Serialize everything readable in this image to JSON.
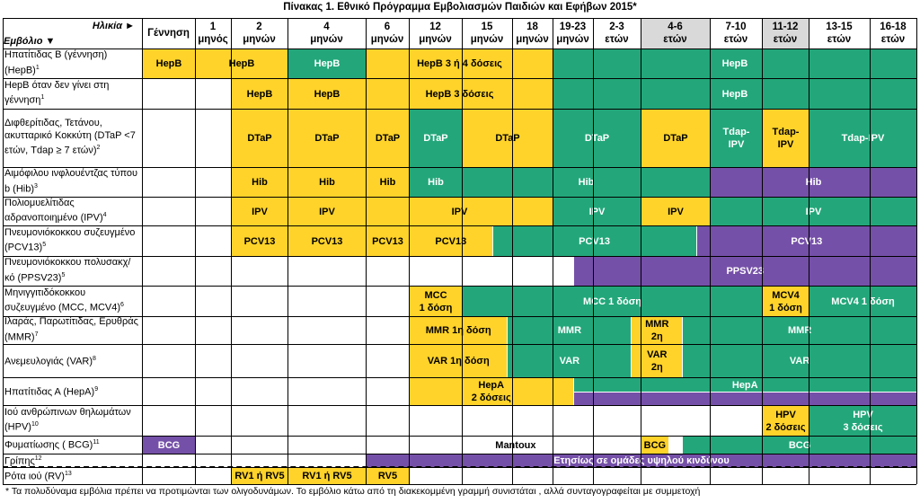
{
  "title": "Πίνακας 1.  Εθνικό Πρόγραμμα Εμβολιασμών Παιδιών και Εφήβων 2015*",
  "corner": {
    "age_label": "Ηλικία ►",
    "vaccine_label": "Εμβόλιο ▼"
  },
  "columns": [
    {
      "l1": "Γέννηση",
      "l2": ""
    },
    {
      "l1": "1",
      "l2": "μηνός"
    },
    {
      "l1": "2",
      "l2": "μηνών"
    },
    {
      "l1": "4",
      "l2": "μηνών"
    },
    {
      "l1": "6",
      "l2": "μηνών"
    },
    {
      "l1": "12",
      "l2": "μηνών"
    },
    {
      "l1": "15",
      "l2": "μηνών"
    },
    {
      "l1": "18",
      "l2": "μηνών"
    },
    {
      "l1": "19-23",
      "l2": "μηνών"
    },
    {
      "l1": "2-3",
      "l2": "ετών"
    },
    {
      "l1": "4-6",
      "l2": "ετών"
    },
    {
      "l1": "7-10",
      "l2": "ετών"
    },
    {
      "l1": "11-12",
      "l2": "ετών"
    },
    {
      "l1": "13-15",
      "l2": "ετών"
    },
    {
      "l1": "16-18",
      "l2": "ετών"
    }
  ],
  "rows": [
    {
      "label": "Ηπατίτιδας Β (γέννηση) (ΗepB)",
      "note": "1",
      "bars": [
        {
          "s": 0,
          "e": 0,
          "c": "Y",
          "t": "HepB"
        },
        {
          "s": 1,
          "e": 2,
          "c": "Y",
          "t": "HepB"
        },
        {
          "s": 3,
          "e": 3,
          "c": "G",
          "t": "HepB"
        },
        {
          "s": 4,
          "e": 7,
          "c": "Y",
          "t": "HepB 3 ή 4 δόσεις"
        },
        {
          "s": 8,
          "e": 14,
          "c": "G",
          "t": "HepB"
        }
      ]
    },
    {
      "label": "HepB  όταν δεν γίνει στη γέννηση",
      "note": "1",
      "bars": [
        {
          "s": 2,
          "e": 2,
          "c": "Y",
          "t": "HepB"
        },
        {
          "s": 3,
          "e": 3,
          "c": "Y",
          "t": "HepB"
        },
        {
          "s": 4,
          "e": 7,
          "c": "Y",
          "t": "HepB 3 δόσεις"
        },
        {
          "s": 8,
          "e": 14,
          "c": "G",
          "t": "HepB"
        }
      ]
    },
    {
      "label": "Διφθερίτιδας, Τετάνου, ακυτταρικό Κοκκύτη (DTaP <7 ετών, Tdap ≥ 7  ετών)",
      "note": "2",
      "bars": [
        {
          "s": 2,
          "e": 2,
          "c": "Y",
          "t": "DTaP"
        },
        {
          "s": 3,
          "e": 3,
          "c": "Y",
          "t": "DTaP"
        },
        {
          "s": 4,
          "e": 4,
          "c": "Y",
          "t": "DTaP"
        },
        {
          "s": 5,
          "e": 5,
          "c": "G",
          "t": "DTaP"
        },
        {
          "s": 6,
          "e": 7,
          "c": "Y",
          "t": "DTaP"
        },
        {
          "s": 8,
          "e": 9,
          "c": "G",
          "t": "DTaP"
        },
        {
          "s": 10,
          "e": 10,
          "c": "Y",
          "t": "DTaP"
        },
        {
          "s": 11,
          "e": 11,
          "c": "G",
          "t": "Tdap-\nIPV"
        },
        {
          "s": 12,
          "e": 12,
          "c": "Y",
          "t": "Tdap-\nIPV"
        },
        {
          "s": 13,
          "e": 14,
          "c": "G",
          "t": "Tdap-IPV"
        }
      ]
    },
    {
      "label": "Αιμόφιλου ινφλουέντζας τύπου b (Hib)",
      "note": "3",
      "bars": [
        {
          "s": 2,
          "e": 2,
          "c": "Y",
          "t": "Hib"
        },
        {
          "s": 3,
          "e": 3,
          "c": "Y",
          "t": "Hib"
        },
        {
          "s": 4,
          "e": 4,
          "c": "Y",
          "t": "Hib"
        },
        {
          "s": 5,
          "e": 5,
          "c": "G",
          "t": "Hib"
        },
        {
          "s": 6,
          "e": 10,
          "c": "G",
          "t": "Hib"
        },
        {
          "s": 11,
          "e": 14,
          "c": "P",
          "t": "Hib"
        }
      ]
    },
    {
      "label": "Πολιομυελίτιδας αδρανοποιημένο (IPV)",
      "note": "4",
      "bars": [
        {
          "s": 2,
          "e": 2,
          "c": "Y",
          "t": "IPV"
        },
        {
          "s": 3,
          "e": 3,
          "c": "Y",
          "t": "IPV"
        },
        {
          "s": 4,
          "e": 7,
          "c": "Y",
          "t": "IPV"
        },
        {
          "s": 8,
          "e": 9,
          "c": "G",
          "t": "IPV"
        },
        {
          "s": 10,
          "e": 10,
          "c": "Y",
          "t": "IPV"
        },
        {
          "s": 11,
          "e": 14,
          "c": "G",
          "t": "IPV"
        }
      ]
    },
    {
      "label": "Πνευμονιόκοκκου συζευγμένο (PCV13)",
      "note": "5",
      "bars": [
        {
          "s": 2,
          "e": 2,
          "c": "Y",
          "t": "PCV13"
        },
        {
          "s": 3,
          "e": 3,
          "c": "Y",
          "t": "PCV13"
        },
        {
          "s": 4,
          "e": 4,
          "c": "Y",
          "t": "PCV13"
        },
        {
          "s": 5,
          "e": 6.6,
          "c": "Y",
          "t": "PCV13"
        },
        {
          "s": 6.6,
          "e": 10.8,
          "c": "G",
          "t": "PCV13"
        },
        {
          "s": 10.8,
          "e": 14,
          "c": "P",
          "t": "PCV13"
        }
      ]
    },
    {
      "label": "Πνευμονιόκοκκου πολυσακχ/κό (PPSV23)",
      "note": "5",
      "bars": [
        {
          "s": 8.5,
          "e": 14,
          "c": "P",
          "t": "PPSV23"
        }
      ]
    },
    {
      "label": "Μηνιγγιτιδόκοκκου συζευγμένο (MCC, MCV4)",
      "note": "6",
      "bars": [
        {
          "s": 5,
          "e": 5,
          "c": "Y",
          "t": "MCC\n1 δόση"
        },
        {
          "s": 6,
          "e": 11,
          "c": "G",
          "t": "MCC 1 δόση"
        },
        {
          "s": 12,
          "e": 12,
          "c": "Y",
          "t": "MCV4\n1 δόση"
        },
        {
          "s": 13,
          "e": 14,
          "c": "G",
          "t": "MCV4 1 δόση"
        }
      ]
    },
    {
      "label": "Ιλαράς, Παρωτίτιδας, Ερυθράς (MMR)",
      "note": "7",
      "bars": [
        {
          "s": 5,
          "e": 6.9,
          "c": "Y",
          "t": "MMR 1η δόση"
        },
        {
          "s": 6.9,
          "e": 9.8,
          "c": "G",
          "t": "MMR"
        },
        {
          "s": 9.8,
          "e": 10.6,
          "c": "Y",
          "t": "MMR\n2η"
        },
        {
          "s": 10.6,
          "e": 14,
          "c": "G",
          "t": "MMR"
        }
      ]
    },
    {
      "label": "Ανεμευλογιάς (VAR)",
      "note": "8",
      "bars": [
        {
          "s": 5,
          "e": 6.9,
          "c": "Y",
          "t": "VAR 1η δόση"
        },
        {
          "s": 6.9,
          "e": 9.8,
          "c": "G",
          "t": "VAR"
        },
        {
          "s": 9.8,
          "e": 10.6,
          "c": "Y",
          "t": "VAR\n2η"
        },
        {
          "s": 10.6,
          "e": 14,
          "c": "G",
          "t": "VAR"
        }
      ]
    },
    {
      "label": "Ηπατίτιδας Α  (HepA)",
      "note": "9",
      "bars": [
        {
          "s": 5,
          "e": 8.5,
          "c": "Y",
          "t": "HepA\n2 δόσεις"
        },
        {
          "s": 8.5,
          "e": 14,
          "c": "G",
          "t": "HepA",
          "half": "top"
        },
        {
          "s": 8.5,
          "e": 14,
          "c": "P",
          "t": "",
          "half": "bottom"
        }
      ]
    },
    {
      "label": "Ιού ανθρώπινων θηλωμάτων (HPV)",
      "note": "10",
      "bars": [
        {
          "s": 12,
          "e": 12,
          "c": "Y",
          "t": "HPV\n2 δόσεις"
        },
        {
          "s": 13,
          "e": 14,
          "c": "G",
          "t": "HPV\n3 δόσεις",
          "shiftLeft": true
        }
      ]
    },
    {
      "label": "Φυματίωσης ( BCG)",
      "note": "11",
      "bars": [
        {
          "s": 0,
          "e": 0,
          "c": "P",
          "t": "BCG"
        },
        {
          "s": 5,
          "e": 9.6,
          "c": "Wt",
          "t": "Mantoux"
        },
        {
          "s": 10,
          "e": 10.4,
          "c": "Y",
          "t": "BCG"
        },
        {
          "s": 10.6,
          "e": 14,
          "c": "G",
          "t": "BCG"
        }
      ]
    },
    {
      "label": "Γρίπης",
      "note": "12",
      "bars": [
        {
          "s": 4,
          "e": 14,
          "c": "P",
          "t": "Ετησίως σε ομάδες υψηλού κινδύνου"
        }
      ]
    },
    {
      "label": "Ρότα ιού (RV)",
      "note": "13",
      "bars": [
        {
          "s": 2,
          "e": 2,
          "c": "Y",
          "t": "RV1 ή  RV5"
        },
        {
          "s": 3,
          "e": 3,
          "c": "Y",
          "t": "RV1 ή  RV5"
        },
        {
          "s": 4,
          "e": 4,
          "c": "Y",
          "t": "RV5"
        }
      ]
    }
  ],
  "footnote": "* Τα πολυδύναμα εμβόλια πρέπει να  προτιμώνται των ολιγοδυνάμων.  Το εμβόλιο κάτω από τη διακεκομμένη γραμμή συνιστάται , αλλά  συνταγογραφείται με  συμμετοχή",
  "colors": {
    "yellow": "#ffd32a",
    "green": "#23a77a",
    "purple": "#7550a8",
    "header_shade": "#d9d9d9"
  }
}
